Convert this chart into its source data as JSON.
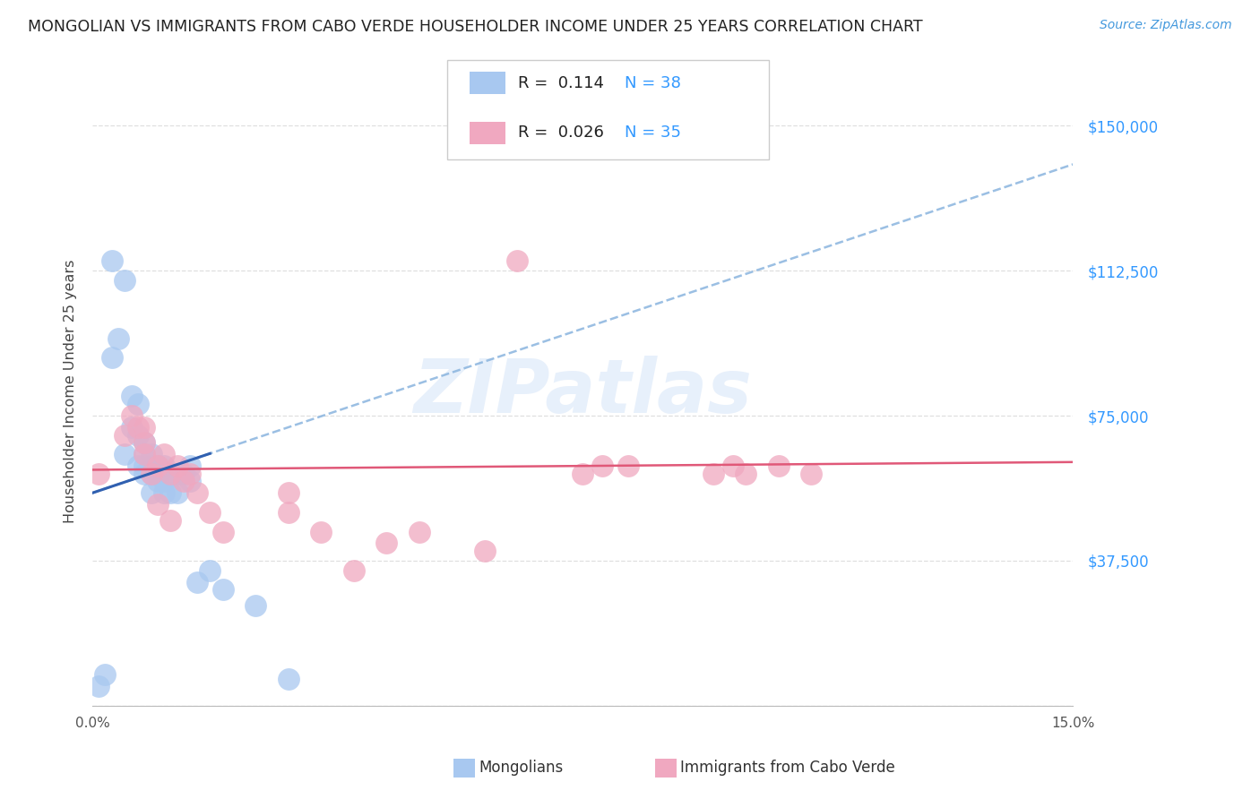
{
  "title": "MONGOLIAN VS IMMIGRANTS FROM CABO VERDE HOUSEHOLDER INCOME UNDER 25 YEARS CORRELATION CHART",
  "source": "Source: ZipAtlas.com",
  "ylabel": "Householder Income Under 25 years",
  "xlim": [
    0.0,
    0.15
  ],
  "ylim": [
    0,
    162500
  ],
  "yticks": [
    0,
    37500,
    75000,
    112500,
    150000
  ],
  "ytick_labels": [
    "",
    "$37,500",
    "$75,000",
    "$112,500",
    "$150,000"
  ],
  "xtick_positions": [
    0.0,
    0.015,
    0.03,
    0.045,
    0.06,
    0.075,
    0.09,
    0.105,
    0.12,
    0.135,
    0.15
  ],
  "xtick_labels": [
    "0.0%",
    "",
    "",
    "",
    "",
    "",
    "",
    "",
    "",
    "",
    "15.0%"
  ],
  "mongolian_R": 0.114,
  "mongolian_N": 38,
  "caboverde_R": 0.026,
  "caboverde_N": 35,
  "mongolian_color": "#a8c8f0",
  "caboverde_color": "#f0a8c0",
  "trend_mongolian_color": "#90b8e0",
  "trend_mongolian_solid_color": "#3060b0",
  "trend_caboverde_color": "#e05878",
  "bg_color": "#ffffff",
  "grid_color": "#d8d8d8",
  "watermark": "ZIPatlas",
  "ytick_color": "#3399ff",
  "source_color": "#4499dd",
  "mongolian_x": [
    0.001,
    0.002,
    0.003,
    0.003,
    0.004,
    0.005,
    0.005,
    0.006,
    0.006,
    0.007,
    0.007,
    0.007,
    0.008,
    0.008,
    0.008,
    0.008,
    0.009,
    0.009,
    0.009,
    0.009,
    0.01,
    0.01,
    0.01,
    0.011,
    0.011,
    0.011,
    0.012,
    0.012,
    0.013,
    0.013,
    0.014,
    0.015,
    0.015,
    0.016,
    0.018,
    0.02,
    0.025,
    0.03
  ],
  "mongolian_y": [
    5000,
    8000,
    115000,
    90000,
    95000,
    110000,
    65000,
    72000,
    80000,
    70000,
    78000,
    62000,
    60000,
    65000,
    68000,
    62000,
    55000,
    60000,
    65000,
    62000,
    58000,
    60000,
    62000,
    55000,
    58000,
    62000,
    55000,
    60000,
    55000,
    60000,
    60000,
    58000,
    62000,
    32000,
    35000,
    30000,
    26000,
    7000
  ],
  "caboverde_x": [
    0.001,
    0.005,
    0.006,
    0.007,
    0.008,
    0.008,
    0.009,
    0.01,
    0.011,
    0.012,
    0.013,
    0.014,
    0.015,
    0.016,
    0.018,
    0.02,
    0.03,
    0.03,
    0.035,
    0.04,
    0.045,
    0.05,
    0.06,
    0.065,
    0.075,
    0.078,
    0.082,
    0.095,
    0.098,
    0.1,
    0.105,
    0.11,
    0.008,
    0.01,
    0.012
  ],
  "caboverde_y": [
    60000,
    70000,
    75000,
    72000,
    65000,
    68000,
    60000,
    62000,
    65000,
    60000,
    62000,
    58000,
    60000,
    55000,
    50000,
    45000,
    55000,
    50000,
    45000,
    35000,
    42000,
    45000,
    40000,
    115000,
    60000,
    62000,
    62000,
    60000,
    62000,
    60000,
    62000,
    60000,
    72000,
    52000,
    48000
  ]
}
